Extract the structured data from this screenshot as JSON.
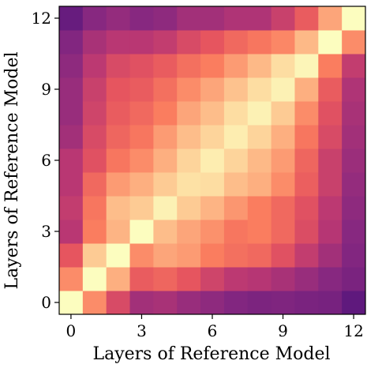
{
  "chart_data": {
    "type": "heatmap",
    "title": "",
    "xlabel": "Layers of Reference Model",
    "ylabel": "Layers of Reference Model",
    "colormap": "magma",
    "x_tick_labels": [
      "0",
      "3",
      "6",
      "9",
      "12"
    ],
    "y_tick_labels": [
      "0",
      "3",
      "6",
      "9",
      "12"
    ],
    "x": [
      0,
      1,
      2,
      3,
      4,
      5,
      6,
      7,
      8,
      9,
      10,
      11,
      12
    ],
    "y": [
      0,
      1,
      2,
      3,
      4,
      5,
      6,
      7,
      8,
      9,
      10,
      11,
      12
    ],
    "value_range": [
      0,
      1
    ],
    "values": [
      [
        1.0,
        0.75,
        0.55,
        0.38,
        0.4,
        0.35,
        0.32,
        0.28,
        0.26,
        0.27,
        0.25,
        0.24,
        0.15
      ],
      [
        0.75,
        1.0,
        0.82,
        0.62,
        0.65,
        0.6,
        0.52,
        0.46,
        0.44,
        0.4,
        0.35,
        0.3,
        0.25
      ],
      [
        0.6,
        0.88,
        1.0,
        0.75,
        0.8,
        0.78,
        0.72,
        0.68,
        0.66,
        0.58,
        0.48,
        0.38,
        0.28
      ],
      [
        0.45,
        0.72,
        0.83,
        1.0,
        0.85,
        0.8,
        0.76,
        0.7,
        0.72,
        0.66,
        0.56,
        0.44,
        0.3
      ],
      [
        0.48,
        0.7,
        0.85,
        0.88,
        0.97,
        0.88,
        0.83,
        0.77,
        0.72,
        0.66,
        0.58,
        0.46,
        0.32
      ],
      [
        0.45,
        0.66,
        0.78,
        0.82,
        0.88,
        0.93,
        0.92,
        0.85,
        0.82,
        0.75,
        0.63,
        0.5,
        0.34
      ],
      [
        0.45,
        0.58,
        0.7,
        0.75,
        0.82,
        0.9,
        0.96,
        0.9,
        0.84,
        0.78,
        0.65,
        0.5,
        0.36
      ],
      [
        0.38,
        0.55,
        0.65,
        0.7,
        0.78,
        0.85,
        0.9,
        0.96,
        0.9,
        0.82,
        0.7,
        0.55,
        0.38
      ],
      [
        0.35,
        0.52,
        0.62,
        0.66,
        0.72,
        0.8,
        0.85,
        0.92,
        0.97,
        0.88,
        0.75,
        0.58,
        0.4
      ],
      [
        0.35,
        0.5,
        0.6,
        0.62,
        0.68,
        0.75,
        0.8,
        0.86,
        0.92,
        0.97,
        0.82,
        0.62,
        0.42
      ],
      [
        0.32,
        0.46,
        0.55,
        0.58,
        0.62,
        0.68,
        0.72,
        0.78,
        0.84,
        0.92,
        0.98,
        0.72,
        0.48
      ],
      [
        0.28,
        0.4,
        0.45,
        0.45,
        0.48,
        0.55,
        0.6,
        0.66,
        0.7,
        0.74,
        0.84,
        1.0,
        0.75
      ],
      [
        0.18,
        0.3,
        0.34,
        0.3,
        0.32,
        0.38,
        0.38,
        0.42,
        0.42,
        0.5,
        0.62,
        0.8,
        1.0
      ]
    ]
  }
}
